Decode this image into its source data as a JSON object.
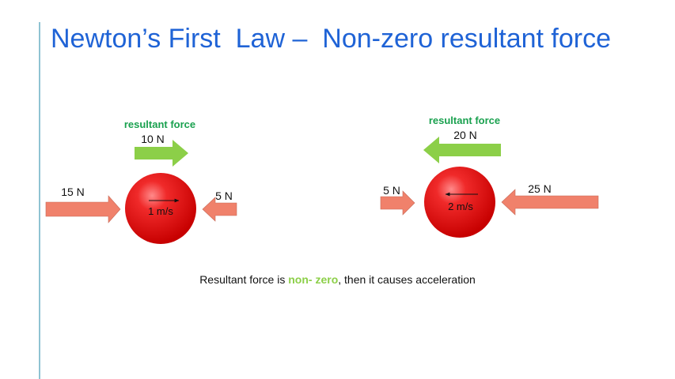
{
  "slide": {
    "title": "Newton’s First  Law –  Non-zero resultant force",
    "caption": {
      "before": "Resultant force is ",
      "highlight": "non- zero",
      "after": ", then it causes acceleration"
    }
  },
  "scenes": [
    {
      "resultant_label": "resultant force",
      "resultant_value": "10 N",
      "left_force": "15 N",
      "right_force": "5 N",
      "velocity": "1 m/s",
      "resultant_direction": "right"
    },
    {
      "resultant_label": "resultant force",
      "resultant_value": "20 N",
      "left_force": "5 N",
      "right_force": "25 N",
      "velocity": "2 m/s",
      "resultant_direction": "left"
    }
  ],
  "colors": {
    "title": "#1f63d6",
    "resultant_label": "#1aa14f",
    "resultant_arrow": "#8ccf48",
    "force_arrow": "#f0816b",
    "ball": "#e81010",
    "highlight": "#8ccf48"
  }
}
